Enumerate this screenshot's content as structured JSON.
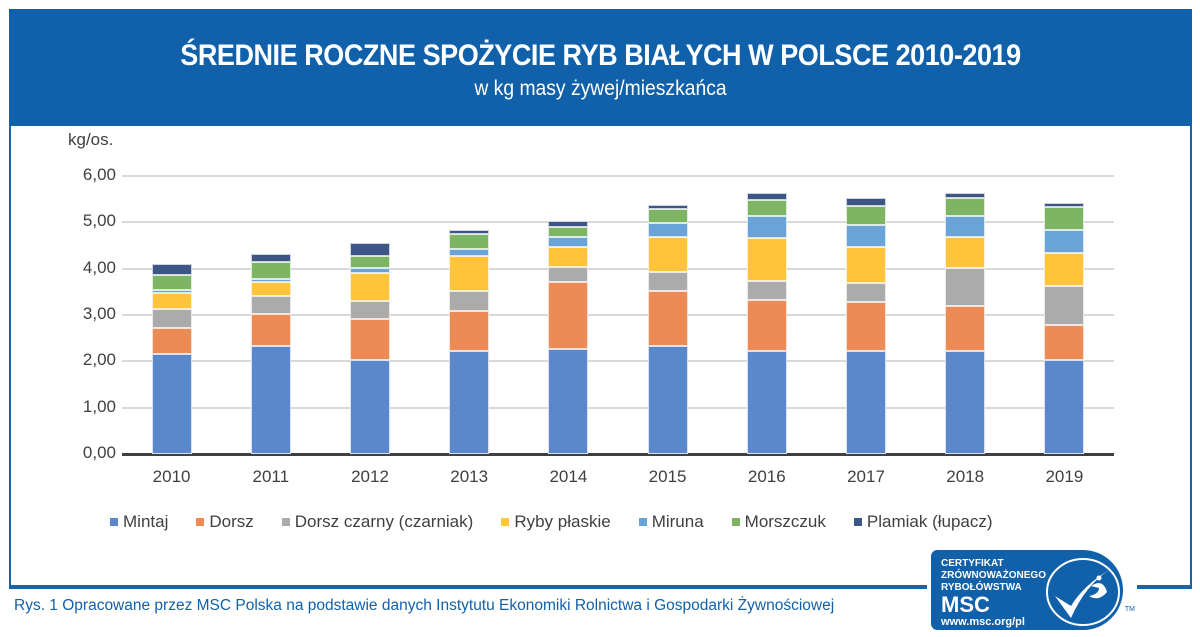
{
  "header": {
    "title": "ŚREDNIE ROCZNE SPOŻYCIE RYB BIAŁYCH W POLSCE 2010-2019",
    "subtitle": "w kg masy żywej/mieszkańca"
  },
  "caption": "Rys. 1 Opracowane przez MSC Polska na podstawie danych Instytutu Ekonomiki Rolnictwa i Gospodarki Żywnościowej",
  "logo": {
    "line1": "CERTYFIKAT",
    "line2": "ZRÓWNOWAŻONEGO",
    "line3": "RYBOŁÓWSTWA",
    "brand": "MSC",
    "url": "www.msc.org/pl",
    "tm": "TM"
  },
  "colors": {
    "header_bg": "#1160aa",
    "Mintaj": "#5b87cc",
    "Dorsz": "#ed8b57",
    "Dorsz czarny (czarniak)": "#ababab",
    "Ryby płaskie": "#ffc33c",
    "Miruna": "#69a3d8",
    "Morszczuk": "#7eb565",
    "Plamiak (łupacz)": "#3d5686"
  },
  "chart_data": {
    "type": "bar",
    "stacked": true,
    "title": "ŚREDNIE ROCZNE SPOŻYCIE RYB BIAŁYCH W POLSCE 2010-2019",
    "subtitle": "w kg masy żywej/mieszkańca",
    "xlabel": "",
    "ylabel": "kg/os.",
    "ylim": [
      0,
      6
    ],
    "yticks": [
      "0,00",
      "1,00",
      "2,00",
      "3,00",
      "4,00",
      "5,00",
      "6,00"
    ],
    "grid": true,
    "legend_position": "bottom",
    "categories": [
      "2010",
      "2011",
      "2012",
      "2013",
      "2014",
      "2015",
      "2016",
      "2017",
      "2018",
      "2019"
    ],
    "series": [
      {
        "name": "Mintaj",
        "color": "#5b87cc",
        "values": [
          2.15,
          2.33,
          2.03,
          2.22,
          2.27,
          2.33,
          2.22,
          2.22,
          2.22,
          2.03
        ]
      },
      {
        "name": "Dorsz",
        "color": "#ed8b57",
        "values": [
          0.57,
          0.69,
          0.88,
          0.87,
          1.44,
          1.19,
          1.1,
          1.06,
          0.97,
          0.75
        ]
      },
      {
        "name": "Dorsz czarny (czarniak)",
        "color": "#ababab",
        "values": [
          0.41,
          0.39,
          0.39,
          0.43,
          0.33,
          0.41,
          0.41,
          0.41,
          0.82,
          0.85
        ]
      },
      {
        "name": "Ryby płaskie",
        "color": "#ffc33c",
        "values": [
          0.35,
          0.3,
          0.61,
          0.75,
          0.43,
          0.75,
          0.93,
          0.78,
          0.67,
          0.71
        ]
      },
      {
        "name": "Miruna",
        "color": "#69a3d8",
        "values": [
          0.07,
          0.06,
          0.11,
          0.15,
          0.21,
          0.31,
          0.48,
          0.47,
          0.46,
          0.49
        ]
      },
      {
        "name": "Morszczuk",
        "color": "#7eb565",
        "values": [
          0.32,
          0.38,
          0.26,
          0.33,
          0.22,
          0.3,
          0.34,
          0.41,
          0.39,
          0.5
        ]
      },
      {
        "name": "Plamiak (łupacz)",
        "color": "#3d5686",
        "values": [
          0.23,
          0.17,
          0.27,
          0.08,
          0.13,
          0.08,
          0.15,
          0.18,
          0.1,
          0.09
        ]
      }
    ]
  }
}
